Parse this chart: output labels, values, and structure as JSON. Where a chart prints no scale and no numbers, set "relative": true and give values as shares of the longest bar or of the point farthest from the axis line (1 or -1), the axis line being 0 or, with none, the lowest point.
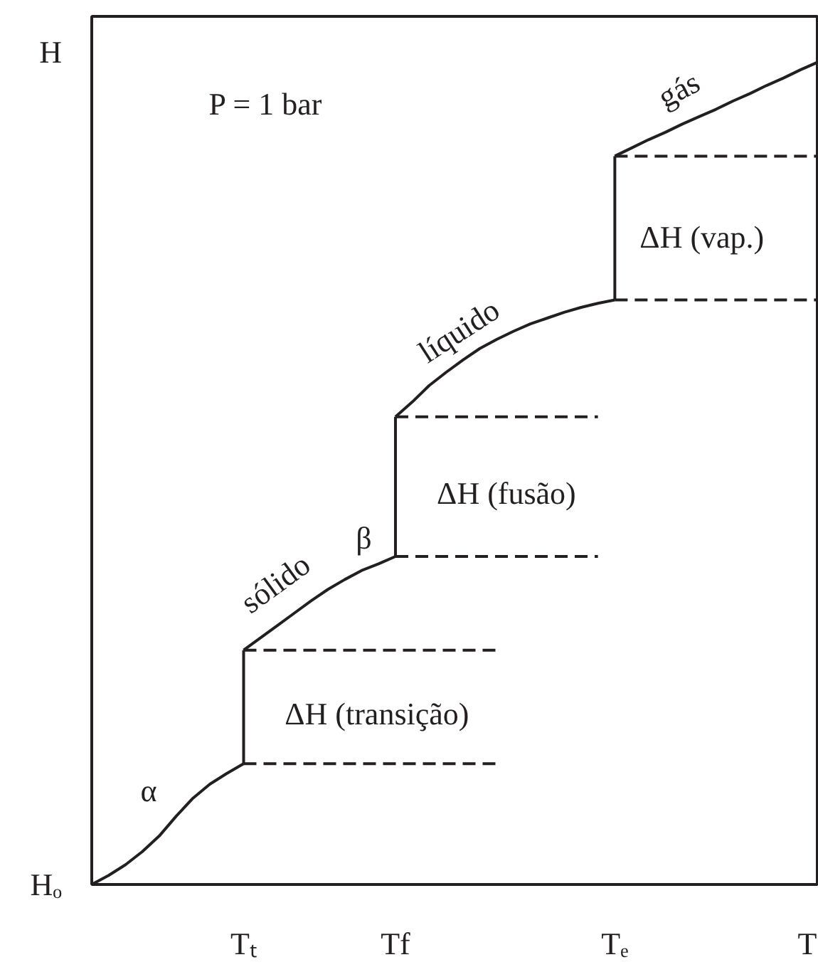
{
  "chart_data": {
    "type": "line",
    "relative": true,
    "xlabel": "T",
    "ylabel": "H",
    "categories": [
      null,
      null,
      null,
      null,
      null,
      null,
      null,
      null,
      null,
      "Tₜ",
      null,
      null,
      null,
      null,
      null,
      null,
      null,
      null,
      "Tf",
      null,
      null,
      null,
      null,
      null,
      null,
      null,
      null,
      null,
      null,
      null,
      null,
      "Tₑ",
      null,
      null,
      null,
      null,
      null,
      null,
      null,
      null,
      null,
      null,
      null,
      null
    ],
    "series": [
      {
        "color": "#231f20",
        "line_style": "solid",
        "values": [
          0,
          0.011,
          0.024,
          0.04,
          0.059,
          0.083,
          0.105,
          0.122,
          0.135,
          0.147,
          null,
          null,
          null,
          null,
          null,
          null,
          null,
          null,
          null,
          null,
          null,
          null,
          null,
          null,
          null,
          null,
          null,
          null,
          null,
          null,
          null,
          null,
          null,
          null,
          null,
          null,
          null,
          null,
          null,
          null,
          null,
          null,
          null,
          null
        ]
      },
      {
        "color": "#231f20",
        "line_style": "solid",
        "x": [
          "Tₜ",
          "Tₜ"
        ],
        "values": [
          0.147,
          0.285
        ]
      },
      {
        "color": "#231f20",
        "line_style": "solid",
        "values": [
          null,
          null,
          null,
          null,
          null,
          null,
          null,
          null,
          null,
          0.285,
          0.3,
          0.315,
          0.33,
          0.345,
          0.359,
          0.371,
          0.382,
          0.39,
          0.399,
          null,
          null,
          null,
          null,
          null,
          null,
          null,
          null,
          null,
          null,
          null,
          null,
          null,
          null,
          null,
          null,
          null,
          null,
          null,
          null,
          null,
          null,
          null,
          null,
          null
        ]
      },
      {
        "color": "#231f20",
        "line_style": "solid",
        "x": [
          "Tf",
          "Tf"
        ],
        "values": [
          0.399,
          0.569
        ]
      },
      {
        "color": "#231f20",
        "line_style": "solid",
        "values": [
          null,
          null,
          null,
          null,
          null,
          null,
          null,
          null,
          null,
          null,
          null,
          null,
          null,
          null,
          null,
          null,
          null,
          null,
          0.569,
          0.587,
          0.607,
          0.623,
          0.638,
          0.652,
          0.663,
          0.673,
          0.682,
          0.689,
          0.696,
          0.702,
          0.707,
          0.711,
          null,
          null,
          null,
          null,
          null,
          null,
          null,
          null,
          null,
          null,
          null,
          null
        ]
      },
      {
        "color": "#231f20",
        "line_style": "solid",
        "x": [
          "Tₑ",
          "Tₑ"
        ],
        "values": [
          0.711,
          0.886
        ]
      },
      {
        "color": "#231f20",
        "line_style": "solid",
        "values": [
          null,
          null,
          null,
          null,
          null,
          null,
          null,
          null,
          null,
          null,
          null,
          null,
          null,
          null,
          null,
          null,
          null,
          null,
          null,
          null,
          null,
          null,
          null,
          null,
          null,
          null,
          null,
          null,
          null,
          null,
          null,
          0.886,
          0.896,
          0.906,
          0.915,
          0.925,
          0.934,
          0.943,
          0.953,
          0.962,
          0.972,
          0.981,
          0.991,
          1.0
        ]
      },
      {
        "color": "#231f20",
        "line_style": "dashed",
        "values": [
          null,
          null,
          null,
          null,
          null,
          null,
          null,
          null,
          null,
          0.147,
          0.147,
          0.147,
          0.147,
          0.147,
          0.147,
          0.147,
          0.147,
          0.147,
          0.147,
          0.147,
          0.147,
          0.147,
          0.147,
          0.147,
          0.147,
          null,
          null,
          null,
          null,
          null,
          null,
          null,
          null,
          null,
          null,
          null,
          null,
          null,
          null,
          null,
          null,
          null,
          null,
          null
        ]
      },
      {
        "color": "#231f20",
        "line_style": "dashed",
        "values": [
          null,
          null,
          null,
          null,
          null,
          null,
          null,
          null,
          null,
          0.285,
          0.285,
          0.285,
          0.285,
          0.285,
          0.285,
          0.285,
          0.285,
          0.285,
          0.285,
          0.285,
          0.285,
          0.285,
          0.285,
          0.285,
          0.285,
          null,
          null,
          null,
          null,
          null,
          null,
          null,
          null,
          null,
          null,
          null,
          null,
          null,
          null,
          null,
          null,
          null,
          null,
          null
        ]
      },
      {
        "color": "#231f20",
        "line_style": "dashed",
        "values": [
          null,
          null,
          null,
          null,
          null,
          null,
          null,
          null,
          null,
          null,
          null,
          null,
          null,
          null,
          null,
          null,
          null,
          null,
          0.399,
          0.399,
          0.399,
          0.399,
          0.399,
          0.399,
          0.399,
          0.399,
          0.399,
          0.399,
          0.399,
          0.399,
          0.399,
          null,
          null,
          null,
          null,
          null,
          null,
          null,
          null,
          null,
          null,
          null,
          null,
          null
        ]
      },
      {
        "color": "#231f20",
        "line_style": "dashed",
        "values": [
          null,
          null,
          null,
          null,
          null,
          null,
          null,
          null,
          null,
          null,
          null,
          null,
          null,
          null,
          null,
          null,
          null,
          null,
          0.569,
          0.569,
          0.569,
          0.569,
          0.569,
          0.569,
          0.569,
          0.569,
          0.569,
          0.569,
          0.569,
          0.569,
          0.569,
          null,
          null,
          null,
          null,
          null,
          null,
          null,
          null,
          null,
          null,
          null,
          null,
          null
        ]
      },
      {
        "color": "#231f20",
        "line_style": "dashed",
        "values": [
          null,
          null,
          null,
          null,
          null,
          null,
          null,
          null,
          null,
          null,
          null,
          null,
          null,
          null,
          null,
          null,
          null,
          null,
          null,
          null,
          null,
          null,
          null,
          null,
          null,
          null,
          null,
          null,
          null,
          null,
          null,
          0.711,
          0.711,
          0.711,
          0.711,
          0.711,
          0.711,
          0.711,
          0.711,
          0.711,
          0.711,
          0.711,
          0.711,
          0.711
        ]
      },
      {
        "color": "#231f20",
        "line_style": "dashed",
        "values": [
          null,
          null,
          null,
          null,
          null,
          null,
          null,
          null,
          null,
          null,
          null,
          null,
          null,
          null,
          null,
          null,
          null,
          null,
          null,
          null,
          null,
          null,
          null,
          null,
          null,
          null,
          null,
          null,
          null,
          null,
          null,
          0.886,
          0.886,
          0.886,
          0.886,
          0.886,
          0.886,
          0.886,
          0.886,
          0.886,
          0.886,
          0.886,
          0.886,
          0.886
        ]
      }
    ],
    "annotations": [
      "P = 1 bar",
      "Hₒ",
      "α",
      "ΔH (transição)",
      "sólido",
      "β",
      "ΔH (fusão)",
      "líquido",
      "ΔH (vap.)",
      "gás"
    ]
  }
}
